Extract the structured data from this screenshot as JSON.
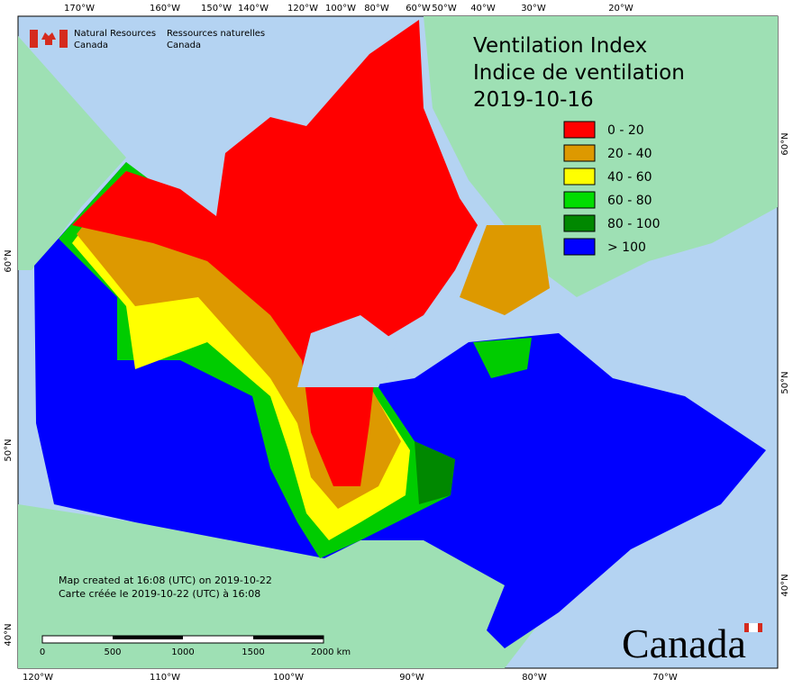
{
  "header": {
    "org_en": [
      "Natural Resources",
      "Canada"
    ],
    "org_fr": [
      "Ressources naturelles",
      "Canada"
    ]
  },
  "title": {
    "en": "Ventilation Index",
    "fr": "Indice de ventilation",
    "date": "2019-10-16"
  },
  "legend": {
    "items": [
      {
        "label": "0 - 20",
        "color": "#ff0000"
      },
      {
        "label": "20 - 40",
        "color": "#dd9900"
      },
      {
        "label": "40 - 60",
        "color": "#ffff00"
      },
      {
        "label": "60 - 80",
        "color": "#00dd00"
      },
      {
        "label": "80 - 100",
        "color": "#008800"
      },
      {
        "label": "> 100",
        "color": "#0000ff"
      }
    ]
  },
  "graticule": {
    "top": [
      "170°W",
      "160°W",
      "150°W",
      "140°W",
      "120°W",
      "100°W",
      "80°W",
      "60°W",
      "50°W",
      "40°W",
      "30°W",
      "20°W"
    ],
    "bottom": [
      "120°W",
      "110°W",
      "100°W",
      "90°W",
      "80°W",
      "70°W"
    ],
    "left": [
      "60°N",
      "50°N",
      "40°N"
    ],
    "right": [
      "60°N",
      "50°N",
      "40°N"
    ]
  },
  "notes": [
    "Map created at 16:08 (UTC) on 2019-10-22",
    "Carte créée le 2019-10-22 (UTC) à 16:08"
  ],
  "scale_bar": {
    "labels": [
      "0",
      "500",
      "1000",
      "1500",
      "2000 km"
    ]
  },
  "wordmark": "Canada"
}
